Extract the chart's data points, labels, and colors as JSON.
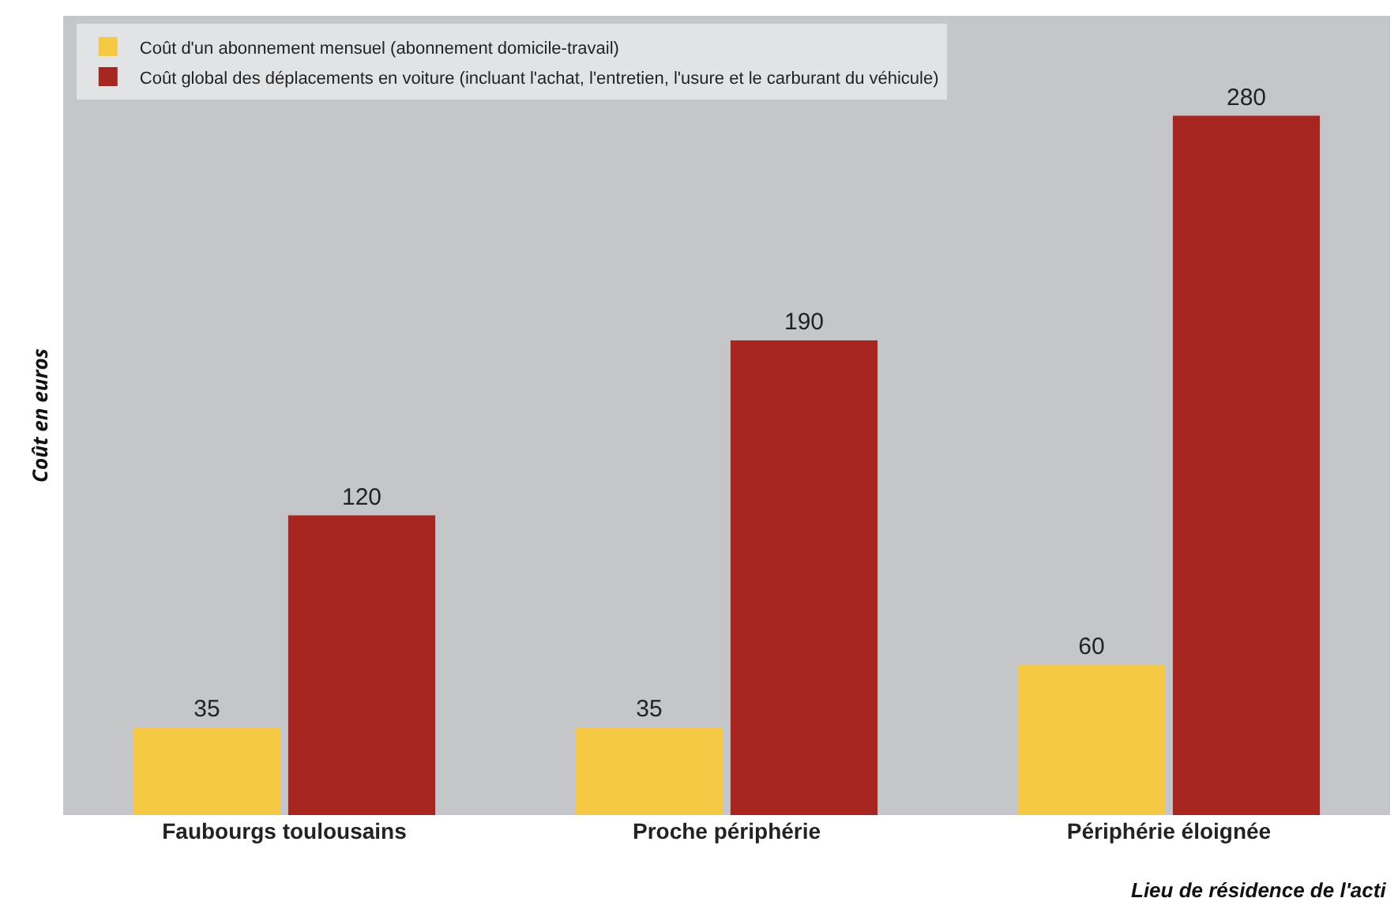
{
  "chart_data": {
    "type": "bar",
    "ylabel": "Coût en euros",
    "xlabel": "Lieu de résidence de l'acti",
    "categories": [
      "Faubourgs toulousains",
      "Proche périphérie",
      "Périphérie éloignée"
    ],
    "series": [
      {
        "name": "Coût d'un abonnement mensuel (abonnement domicile-travail)",
        "color": "#f6c945",
        "values": [
          35,
          35,
          60
        ]
      },
      {
        "name": "Coût global des déplacements en voiture (incluant l'achat, l'entretien, l'usure et le carburant du véhicule)",
        "color": "#a82620",
        "values": [
          120,
          190,
          280
        ]
      }
    ],
    "ylim": [
      0,
      320
    ],
    "data_labels": true,
    "legend": "top left"
  }
}
